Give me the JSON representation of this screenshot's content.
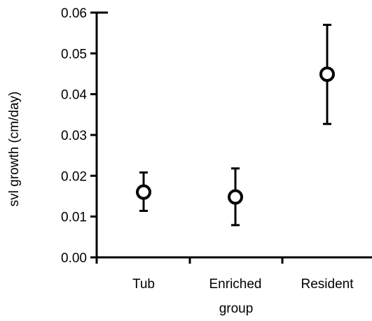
{
  "chart_data": {
    "type": "scatter",
    "xlabel": "group",
    "ylabel": "svl growth (cm/day)",
    "categories": [
      "Tub",
      "Enriched",
      "Resident"
    ],
    "series": [
      {
        "values": [
          0.016,
          0.0148,
          0.0449
        ],
        "error_low": [
          0.0114,
          0.0079,
          0.0327
        ],
        "error_high": [
          0.0208,
          0.0218,
          0.057
        ]
      }
    ],
    "ylim": [
      0,
      0.06
    ],
    "yticks": [
      "0.00",
      "0.01",
      "0.02",
      "0.03",
      "0.04",
      "0.05",
      "0.06"
    ],
    "marker": "open-circle",
    "grid": false,
    "legend": "none",
    "colors": {
      "axis": "#000000",
      "marker_stroke": "#000000",
      "marker_fill": "#ffffff"
    }
  }
}
